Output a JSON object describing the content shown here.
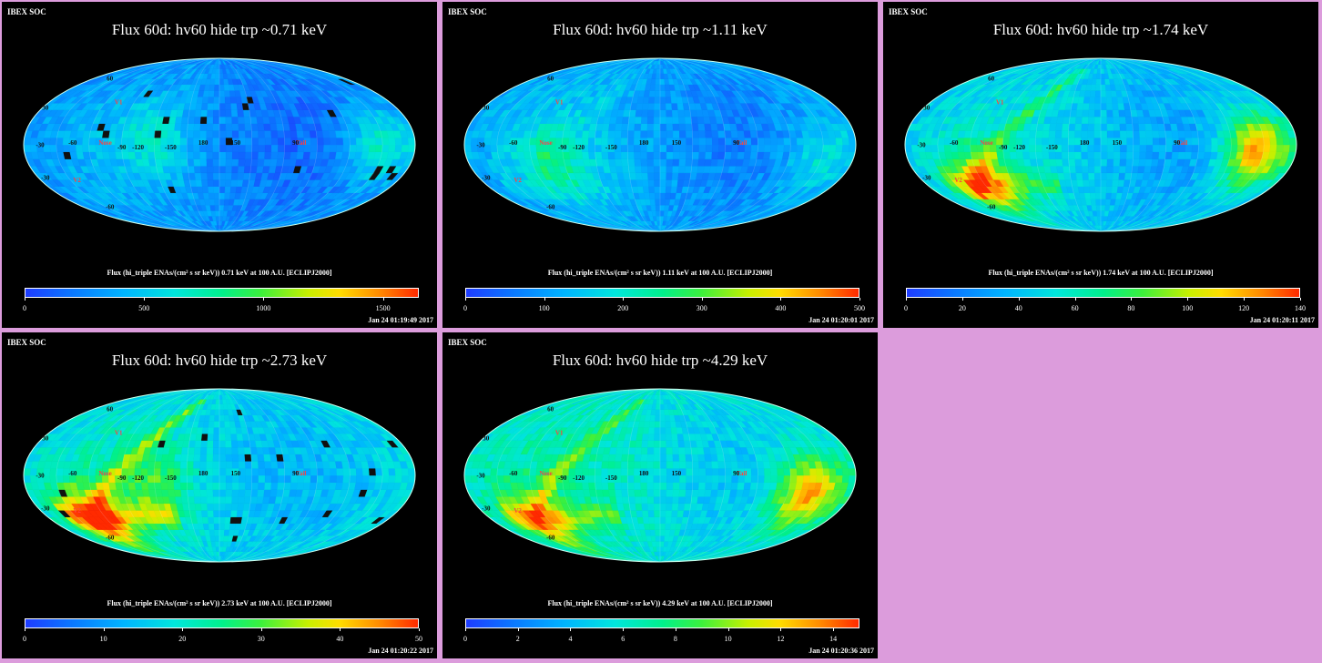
{
  "chart_data": [
    {
      "type": "heatmap",
      "header": "IBEX SOC",
      "title": "Flux   60d: hv60 hide trp ~0.71 keV",
      "colorbar_label": "Flux (hi_triple ENAs/(cm² s sr keV))  0.71 keV at 100 A.U. [ECLIPJ2000]",
      "colorbar_ticks": [
        "0",
        "500",
        "1000",
        "1500"
      ],
      "colorbar_range": [
        0,
        1650
      ],
      "timestamp": "Jan 24 01:19:49 2017",
      "base_level": 0.18,
      "hotspots": [
        {
          "lon": -60,
          "lat": 5,
          "v": 0.35
        },
        {
          "lon": 150,
          "lat": 0,
          "v": 0.45
        }
      ],
      "ribbon": {
        "strength": 0.0
      },
      "dark_pixels": true
    },
    {
      "type": "heatmap",
      "header": "IBEX SOC",
      "title": "Flux   60d: hv60 hide trp ~1.11 keV",
      "colorbar_label": "Flux (hi_triple ENAs/(cm² s sr keV))  1.11 keV at 100 A.U. [ECLIPJ2000]",
      "colorbar_ticks": [
        "0",
        "100",
        "200",
        "300",
        "400",
        "500"
      ],
      "colorbar_range": [
        0,
        500
      ],
      "timestamp": "Jan 24 01:20:01 2017",
      "base_level": 0.22,
      "hotspots": [
        {
          "lon": -100,
          "lat": -15,
          "v": 0.42
        },
        {
          "lon": 150,
          "lat": -10,
          "v": 0.4
        }
      ],
      "ribbon": {
        "strength": 0.1
      },
      "dark_pixels": false
    },
    {
      "type": "heatmap",
      "header": "IBEX SOC",
      "title": "Flux   60d: hv60 hide trp ~1.74 keV",
      "colorbar_label": "Flux (hi_triple ENAs/(cm² s sr keV))  1.74 keV at 100 A.U. [ECLIPJ2000]",
      "colorbar_ticks": [
        "0",
        "20",
        "40",
        "60",
        "80",
        "100",
        "120",
        "140"
      ],
      "colorbar_range": [
        0,
        140
      ],
      "timestamp": "Jan 24 01:20:11 2017",
      "base_level": 0.3,
      "hotspots": [
        {
          "lon": -120,
          "lat": -35,
          "v": 0.72
        },
        {
          "lon": 145,
          "lat": -5,
          "v": 0.9
        }
      ],
      "ribbon": {
        "strength": 0.6
      },
      "dark_pixels": false
    },
    {
      "type": "heatmap",
      "header": "IBEX SOC",
      "title": "Flux   60d: hv60 hide trp ~2.73 keV",
      "colorbar_label": "Flux (hi_triple ENAs/(cm² s sr keV))  2.73 keV at 100 A.U. [ECLIPJ2000]",
      "colorbar_ticks": [
        "0",
        "10",
        "20",
        "30",
        "40",
        "50"
      ],
      "colorbar_range": [
        0,
        50
      ],
      "timestamp": "Jan 24 01:20:22 2017",
      "base_level": 0.34,
      "hotspots": [
        {
          "lon": -130,
          "lat": -40,
          "v": 0.85
        },
        {
          "lon": -60,
          "lat": -10,
          "v": 0.55
        }
      ],
      "ribbon": {
        "strength": 0.75
      },
      "dark_pixels": true
    },
    {
      "type": "heatmap",
      "header": "IBEX SOC",
      "title": "Flux   60d: hv60 hide trp ~4.29 keV",
      "colorbar_label": "Flux (hi_triple ENAs/(cm² s sr keV))  4.29 keV at 100 A.U. [ECLIPJ2000]",
      "colorbar_ticks": [
        "0",
        "2",
        "4",
        "6",
        "8",
        "10",
        "12",
        "14"
      ],
      "colorbar_range": [
        0,
        15
      ],
      "timestamp": "Jan 24 01:20:36 2017",
      "base_level": 0.38,
      "hotspots": [
        {
          "lon": -130,
          "lat": -45,
          "v": 0.7
        },
        {
          "lon": 140,
          "lat": -15,
          "v": 0.9
        }
      ],
      "ribbon": {
        "strength": 0.6
      },
      "dark_pixels": false
    }
  ],
  "map_labels": [
    {
      "text": "V1",
      "lon": -105,
      "lat": 35,
      "color": "#ff4040"
    },
    {
      "text": "V2",
      "lon": -145,
      "lat": -32,
      "color": "#ff4040"
    },
    {
      "text": "Nose",
      "lon": -105,
      "lat": 0,
      "color": "#ff4040"
    },
    {
      "text": "Tail",
      "lon": 75,
      "lat": 0,
      "color": "#ff4040"
    },
    {
      "text": "-60",
      "lon": -135,
      "lat": 0,
      "color": "#101010"
    },
    {
      "text": "-90",
      "lon": -90,
      "lat": -4,
      "color": "#101010"
    },
    {
      "text": "-120",
      "lon": -75,
      "lat": -4,
      "color": "#101010"
    },
    {
      "text": "-150",
      "lon": -45,
      "lat": -4,
      "color": "#101010"
    },
    {
      "text": "180",
      "lon": -15,
      "lat": 0,
      "color": "#101010"
    },
    {
      "text": "150",
      "lon": 15,
      "lat": 0,
      "color": "#101010"
    },
    {
      "text": "90",
      "lon": 70,
      "lat": 0,
      "color": "#101010"
    },
    {
      "text": "-30",
      "lon": -165,
      "lat": -2,
      "color": "#101010"
    },
    {
      "text": "60",
      "lon": -150,
      "lat": 58,
      "color": "#101010"
    },
    {
      "text": "30",
      "lon": -175,
      "lat": 30,
      "color": "#101010"
    },
    {
      "text": "-30",
      "lon": -175,
      "lat": -30,
      "color": "#101010"
    },
    {
      "text": "-60",
      "lon": -150,
      "lat": -58,
      "color": "#101010"
    }
  ]
}
